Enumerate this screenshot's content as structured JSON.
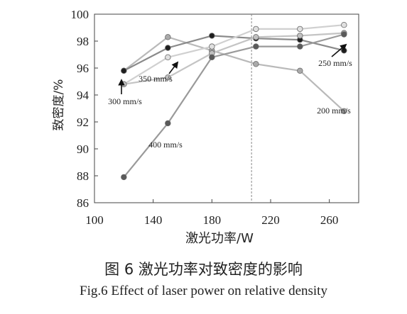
{
  "chart_data": {
    "type": "line",
    "xlabel": "激光功率/W",
    "ylabel": "致密度/%",
    "xlim": [
      100,
      280
    ],
    "ylim": [
      86,
      100
    ],
    "x_ticks": [
      100,
      140,
      180,
      220,
      260
    ],
    "y_ticks": [
      86,
      88,
      90,
      92,
      94,
      96,
      98,
      100
    ],
    "grid": false,
    "reference_line_x": 207,
    "series": [
      {
        "name": "200 mm/s",
        "color": "#b9b9b9",
        "marker_fill": "#aaaaaa",
        "x": [
          120,
          150,
          180,
          210,
          240,
          270
        ],
        "y": [
          95.8,
          98.3,
          97.3,
          96.3,
          95.8,
          92.8
        ]
      },
      {
        "name": "250 mm/s",
        "color": "#8a8a8a",
        "marker_fill": "#1e1e1e",
        "x": [
          120,
          150,
          180,
          210,
          240,
          270
        ],
        "y": [
          95.8,
          97.5,
          98.4,
          98.2,
          98.1,
          97.3
        ]
      },
      {
        "name": "300 mm/s",
        "color": "#d0d0d0",
        "marker_fill": "#e0e0e0",
        "x": [
          120,
          150,
          180,
          210,
          240,
          270
        ],
        "y": [
          94.8,
          96.8,
          97.6,
          98.9,
          98.9,
          99.2
        ]
      },
      {
        "name": "350 mm/s",
        "color": "#c4c4c4",
        "marker_fill": "#c0c0c0",
        "x": [
          120,
          150,
          180,
          210,
          240,
          270
        ],
        "y": [
          94.8,
          95.3,
          97.1,
          98.3,
          98.4,
          98.6
        ]
      },
      {
        "name": "400 mm/s",
        "color": "#9a9a9a",
        "marker_fill": "#5a5a5a",
        "x": [
          120,
          150,
          180,
          210,
          240,
          270
        ],
        "y": [
          87.9,
          91.9,
          96.8,
          97.6,
          97.6,
          98.5
        ]
      }
    ],
    "annotations": [
      {
        "text": "300 mm/s",
        "anchor_series": "300 mm/s"
      },
      {
        "text": "350 mm/s",
        "anchor_series": "350 mm/s"
      },
      {
        "text": "400 mm/s",
        "anchor_series": "400 mm/s"
      },
      {
        "text": "250 mm/s",
        "anchor_series": "250 mm/s"
      },
      {
        "text": "200 mm/s",
        "anchor_series": "200 mm/s"
      }
    ]
  },
  "caption": {
    "chinese": "图 6  激光功率对致密度的影响",
    "english": "Fig.6   Effect of laser power on relative density"
  }
}
